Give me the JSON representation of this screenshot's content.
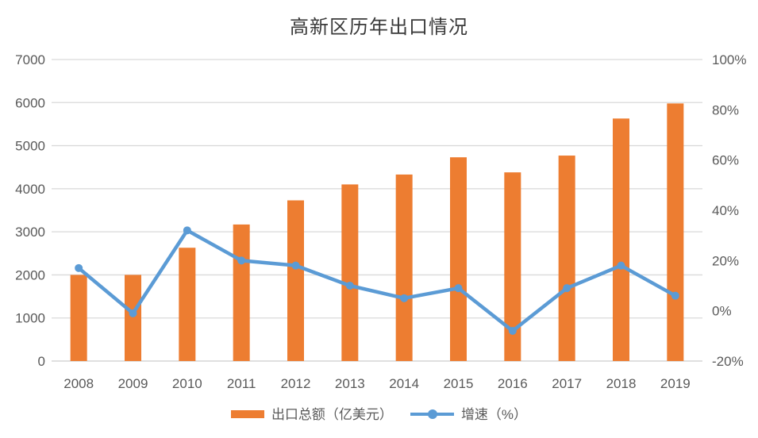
{
  "chart_data": {
    "type": "combo-bar-line",
    "title": "高新区历年出口情况",
    "categories": [
      "2008",
      "2009",
      "2010",
      "2011",
      "2012",
      "2013",
      "2014",
      "2015",
      "2016",
      "2017",
      "2018",
      "2019"
    ],
    "series": [
      {
        "name": "出口总额（亿美元）",
        "type": "bar",
        "axis": "primary",
        "color": "#ED7D31",
        "values": [
          2000,
          2000,
          2630,
          3170,
          3730,
          4100,
          4330,
          4730,
          4380,
          4770,
          5630,
          5980
        ]
      },
      {
        "name": "增速（%）",
        "type": "line",
        "axis": "secondary",
        "color": "#5B9BD5",
        "values": [
          17,
          -1,
          32,
          20,
          18,
          10,
          5,
          9,
          -8,
          9,
          18,
          6
        ]
      }
    ],
    "primary_axis": {
      "min": 0,
      "max": 7000,
      "step": 1000,
      "tick_labels": [
        "0",
        "1000",
        "2000",
        "3000",
        "4000",
        "5000",
        "6000",
        "7000"
      ]
    },
    "secondary_axis": {
      "min": -20,
      "max": 100,
      "step": 20,
      "tick_labels": [
        "-20%",
        "0%",
        "20%",
        "40%",
        "60%",
        "80%",
        "100%"
      ]
    },
    "grid": true,
    "legend_position": "bottom"
  },
  "colors": {
    "bar": "#ED7D31",
    "line": "#5B9BD5",
    "grid": "#D9D9D9",
    "baseline": "#CCCCCC",
    "axis_text": "#595959",
    "title_text": "#3A3A3A",
    "background": "#FFFFFF"
  }
}
